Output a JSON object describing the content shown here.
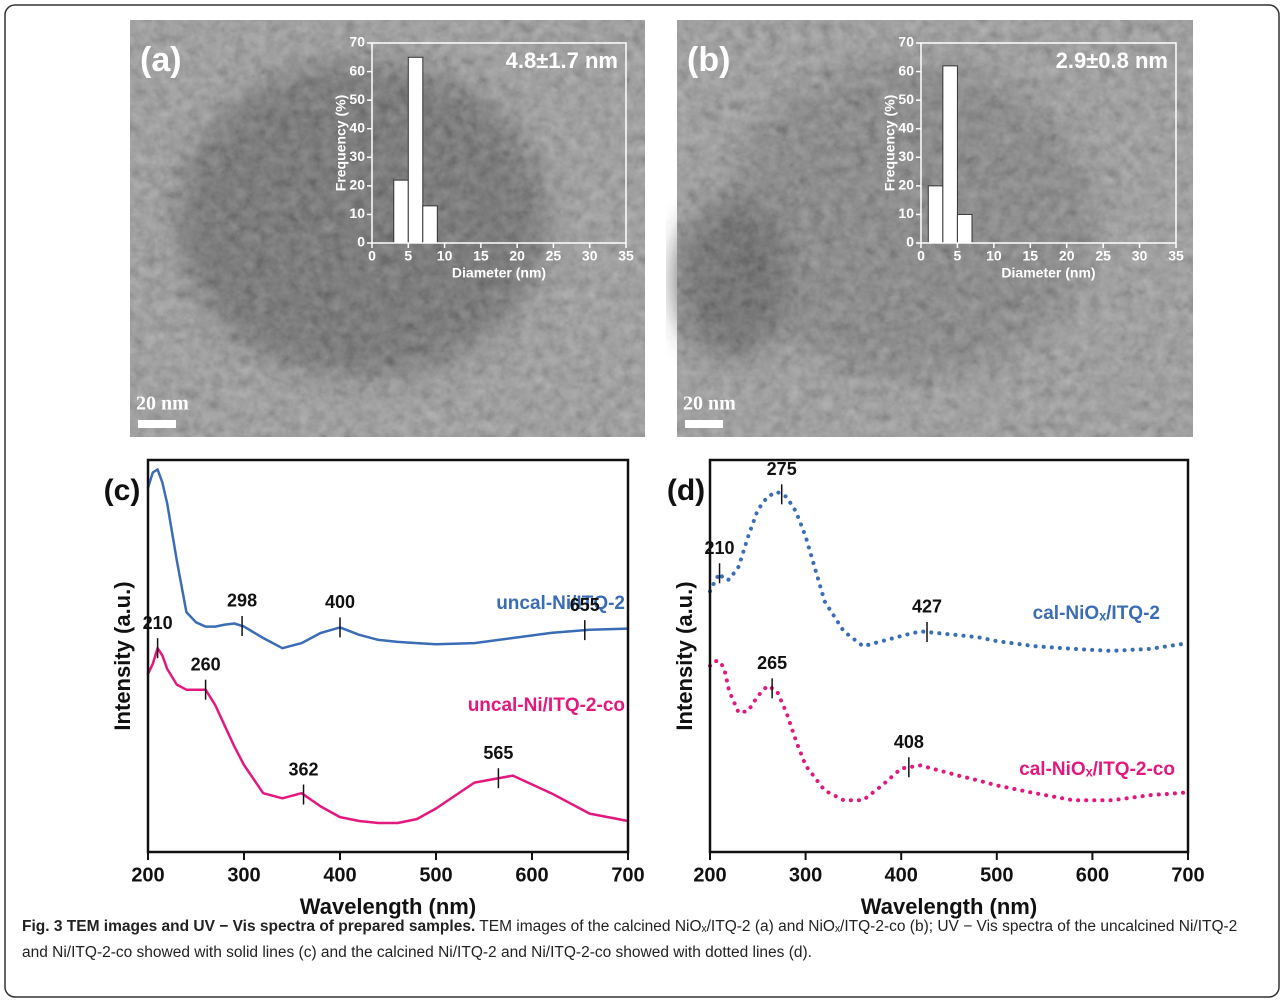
{
  "chart_data": [
    {
      "type": "histogram",
      "panel_label": "(a)",
      "scale_bar": "20 nm",
      "annotation": "4.8±1.7 nm",
      "bins": [
        3,
        5,
        7,
        9
      ],
      "values": [
        22,
        65,
        13
      ],
      "color": "#ffffff",
      "xlim": [
        0,
        35
      ],
      "ylim": [
        0,
        70
      ],
      "xticks": [
        0,
        5,
        10,
        15,
        20,
        25,
        30,
        35
      ],
      "yticks": [
        0,
        10,
        20,
        30,
        40,
        50,
        60,
        70
      ],
      "xlabel": "Diameter (nm)",
      "ylabel": "Frequency (%)"
    },
    {
      "type": "histogram",
      "panel_label": "(b)",
      "scale_bar": "20 nm",
      "annotation": "2.9±0.8 nm",
      "bins": [
        1,
        3,
        5,
        7
      ],
      "values": [
        20,
        62,
        10
      ],
      "color": "#ffffff",
      "xlim": [
        0,
        35
      ],
      "ylim": [
        0,
        70
      ],
      "xticks": [
        0,
        5,
        10,
        15,
        20,
        25,
        30,
        35
      ],
      "yticks": [
        0,
        10,
        20,
        30,
        40,
        50,
        60,
        70
      ],
      "xlabel": "Diameter (nm)",
      "ylabel": "Frequency (%)"
    },
    {
      "type": "line",
      "panel_label": "(c)",
      "line_style": "solid",
      "xlabel": "Wavelength (nm)",
      "ylabel": "Intensity (a.u.)",
      "xlim": [
        200,
        700
      ],
      "ylim": [
        0,
        100
      ],
      "xticks": [
        200,
        300,
        400,
        500,
        600,
        700
      ],
      "x": [
        200,
        205,
        210,
        215,
        220,
        230,
        240,
        250,
        260,
        270,
        280,
        290,
        300,
        320,
        340,
        360,
        380,
        400,
        420,
        440,
        460,
        480,
        500,
        540,
        580,
        620,
        660,
        700
      ],
      "series": [
        {
          "name": "uncal-Ni/ITQ-2",
          "color": "#3a6db5",
          "peaks": [
            298,
            400,
            655
          ],
          "values": [
            92.9,
            96.8,
            97.6,
            94.2,
            88.9,
            74.4,
            61.2,
            58.6,
            57.5,
            57.5,
            58.0,
            58.3,
            57.5,
            54.6,
            52.0,
            53.3,
            55.9,
            57.3,
            55.4,
            54.1,
            53.6,
            53.3,
            53.0,
            53.3,
            54.6,
            55.9,
            56.7,
            57.0
          ]
        },
        {
          "name": "uncal-Ni/ITQ-2-co",
          "color": "#e2187e",
          "peaks": [
            210,
            260,
            362,
            565
          ],
          "values": [
            45.4,
            48.0,
            52.0,
            50.1,
            46.7,
            42.7,
            41.4,
            41.4,
            41.4,
            37.5,
            32.2,
            26.9,
            22.2,
            15.0,
            13.7,
            15.0,
            11.6,
            8.9,
            7.9,
            7.4,
            7.4,
            8.4,
            11.1,
            17.7,
            19.5,
            15.0,
            9.8,
            7.9
          ]
        }
      ]
    },
    {
      "type": "line",
      "panel_label": "(d)",
      "line_style": "dotted",
      "xlabel": "Wavelength (nm)",
      "ylabel": "Intensity (a.u.)",
      "xlim": [
        200,
        700
      ],
      "ylim": [
        0,
        100
      ],
      "xticks": [
        200,
        300,
        400,
        500,
        600,
        700
      ],
      "x": [
        200,
        205,
        210,
        215,
        220,
        230,
        240,
        250,
        260,
        270,
        280,
        290,
        300,
        320,
        340,
        360,
        380,
        400,
        420,
        440,
        460,
        480,
        500,
        540,
        580,
        620,
        660,
        700
      ],
      "series": [
        {
          "name": "cal-NiOₓ/ITQ-2",
          "color": "#3a6db5",
          "peaks": [
            210,
            275,
            427
          ],
          "values": [
            66.5,
            69.0,
            71.1,
            69.5,
            69.5,
            72.8,
            80.5,
            87.3,
            90.6,
            91.9,
            90.6,
            86.8,
            80.5,
            63.9,
            56.3,
            52.5,
            53.8,
            55.1,
            56.3,
            55.8,
            55.3,
            54.8,
            53.8,
            52.5,
            51.8,
            51.3,
            51.8,
            53.3
          ]
        },
        {
          "name": "cal-NiOₓ/ITQ-2-co",
          "color": "#e2187e",
          "peaks": [
            265,
            408
          ],
          "values": [
            47.5,
            48.7,
            48.7,
            46.7,
            41.1,
            35.5,
            36.0,
            39.8,
            42.4,
            41.1,
            35.5,
            28.4,
            22.1,
            15.7,
            13.2,
            13.2,
            17.0,
            21.3,
            22.1,
            20.8,
            19.5,
            18.3,
            17.0,
            15.0,
            13.2,
            13.2,
            14.5,
            15.2
          ]
        }
      ]
    }
  ],
  "caption": {
    "title": "Fig. 3 TEM images and UV − Vis spectra of prepared samples.",
    "text": "TEM images of the calcined NiOₓ/ITQ-2 (a) and NiOₓ/ITQ-2-co (b); UV − Vis spectra of the uncalcined Ni/ITQ-2 and Ni/ITQ-2-co showed with solid lines (c) and the calcined Ni/ITQ-2 and Ni/ITQ-2-co showed with dotted lines (d)."
  }
}
